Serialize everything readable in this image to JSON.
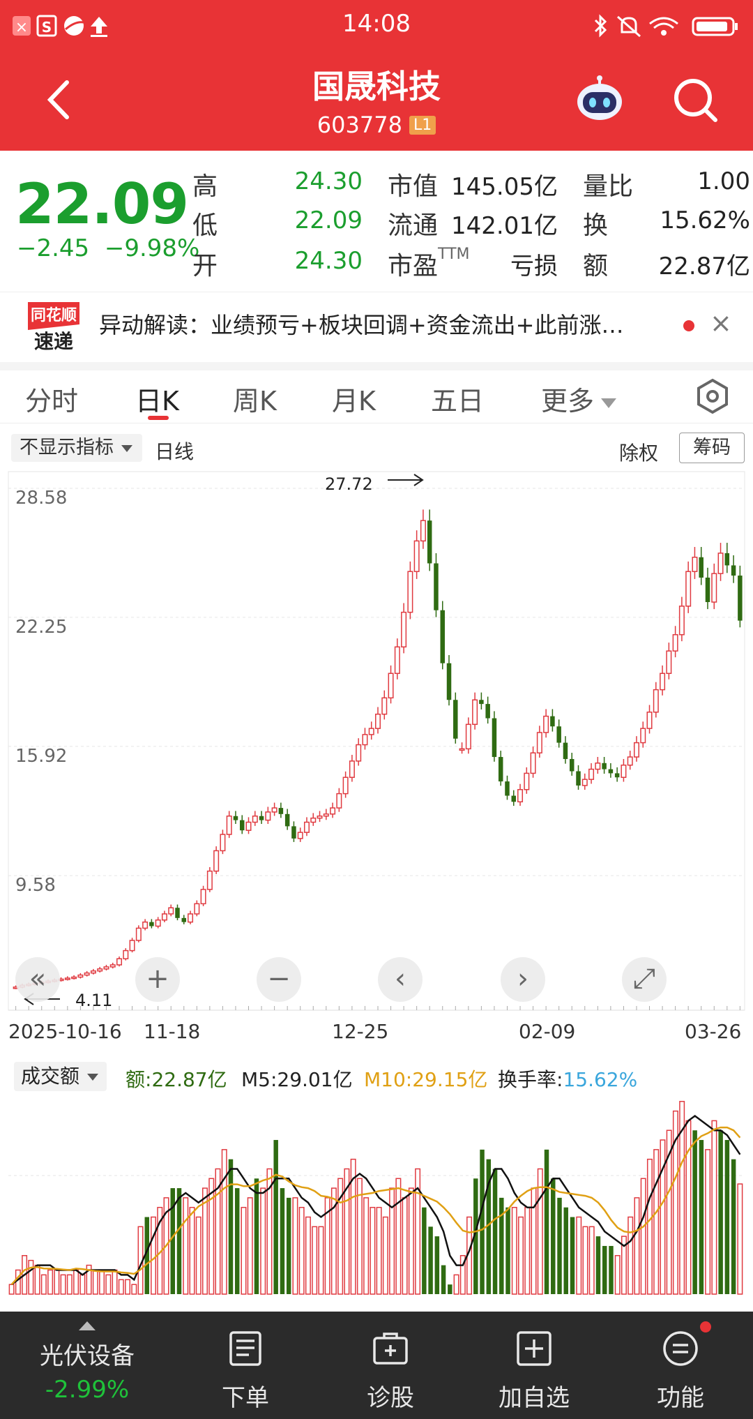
{
  "status_bar": {
    "time": "14:08"
  },
  "header": {
    "stock_name": "国晟科技",
    "stock_code": "603778",
    "level_badge": "L1"
  },
  "quote": {
    "price": "22.09",
    "change": "−2.45",
    "change_pct": "−9.98%",
    "fields": [
      {
        "label": "高",
        "value": "24.30"
      },
      {
        "label": "低",
        "value": "22.09"
      },
      {
        "label": "开",
        "value": "24.30"
      },
      {
        "label": "市值",
        "value": "145.05亿"
      },
      {
        "label": "流通",
        "value": "142.01亿"
      },
      {
        "label": "市盈",
        "label_suffix": "TTM",
        "value": "亏损"
      },
      {
        "label": "量比",
        "value": "1.00"
      },
      {
        "label": "换",
        "value": "15.62%"
      },
      {
        "label": "额",
        "value": "22.87亿"
      }
    ]
  },
  "news": {
    "logo_line1": "同花顺",
    "logo_line2": "速递",
    "text": "异动解读：业绩预亏+板块回调+资金流出+此前涨…",
    "close": "×"
  },
  "tabs": [
    "分时",
    "日K",
    "周K",
    "月K",
    "五日",
    "更多"
  ],
  "active_tab": 1,
  "toolbar": {
    "indicator": "不显示指标",
    "period": "日线",
    "adjust": "除权",
    "chips": "筹码"
  },
  "chart_data": [
    {
      "type": "candlestick",
      "title": "",
      "y_ticks": [
        "28.58",
        "22.25",
        "15.92",
        "9.58"
      ],
      "ylim": [
        3.25,
        28.58
      ],
      "max_label": "27.72",
      "min_label": "4.11",
      "x_labels": [
        "2025-10-16",
        "11-18",
        "12-25",
        "02-09",
        "03-26"
      ],
      "close": [
        4.11,
        4.2,
        4.25,
        4.3,
        4.35,
        4.4,
        4.45,
        4.5,
        4.55,
        4.6,
        4.7,
        4.8,
        4.9,
        5.0,
        5.1,
        5.2,
        5.5,
        5.9,
        6.4,
        7.0,
        7.3,
        7.1,
        7.4,
        7.7,
        8.0,
        7.5,
        7.3,
        7.7,
        8.2,
        8.9,
        9.8,
        10.8,
        11.6,
        12.5,
        12.3,
        11.8,
        12.2,
        12.5,
        12.3,
        12.7,
        12.9,
        12.6,
        12.0,
        11.4,
        11.7,
        12.2,
        12.4,
        12.5,
        12.6,
        12.9,
        13.6,
        14.4,
        15.2,
        16.0,
        16.5,
        16.8,
        17.5,
        18.3,
        19.5,
        20.8,
        22.5,
        24.5,
        26.0,
        27.0,
        24.9,
        22.6,
        20.0,
        18.2,
        16.3,
        15.8,
        17.0,
        18.2,
        18.0,
        17.3,
        15.4,
        14.2,
        13.5,
        13.2,
        13.8,
        14.6,
        15.6,
        16.6,
        17.4,
        16.9,
        16.1,
        15.3,
        14.7,
        14.0,
        14.3,
        14.8,
        15.1,
        14.8,
        14.6,
        14.4,
        15.0,
        15.4,
        16.1,
        16.8,
        17.6,
        18.7,
        19.5,
        20.6,
        21.4,
        22.8,
        24.5,
        25.2,
        24.2,
        23.0,
        24.4,
        25.4,
        24.8,
        24.3,
        22.09
      ],
      "daily_change_pct": [
        0,
        1,
        1,
        1,
        1,
        1,
        1,
        1,
        1,
        1,
        1,
        1,
        1,
        1,
        1,
        1,
        1,
        1,
        1,
        1,
        1,
        -1,
        1,
        1,
        1,
        -1,
        -1,
        1,
        1,
        1,
        1,
        1,
        1,
        1,
        -1,
        -1,
        1,
        1,
        -1,
        1,
        1,
        -1,
        -1,
        -1,
        1,
        1,
        1,
        1,
        1,
        1,
        1,
        1,
        1,
        1,
        1,
        1,
        1,
        1,
        1,
        1,
        1,
        1,
        1,
        1,
        -1,
        -1,
        -1,
        -1,
        -1,
        1,
        1,
        1,
        -1,
        -1,
        -1,
        -1,
        -1,
        -1,
        1,
        1,
        1,
        1,
        1,
        -1,
        -1,
        -1,
        -1,
        -1,
        1,
        1,
        1,
        -1,
        -1,
        -1,
        1,
        1,
        1,
        1,
        1,
        1,
        1,
        1,
        1,
        1,
        1,
        1,
        -1,
        -1,
        1,
        1,
        -1,
        -1,
        -1
      ]
    },
    {
      "type": "bar",
      "title": "成交额",
      "series": [
        {
          "name": "额",
          "current": "22.87亿"
        },
        {
          "name": "M5",
          "current": "29.01亿"
        },
        {
          "name": "M10",
          "current": "29.15亿"
        }
      ],
      "turnover_label": "换手率",
      "turnover_value": "15.62%",
      "ylim": [
        0,
        42
      ],
      "values": [
        2,
        5,
        8,
        7,
        6,
        4,
        5,
        5,
        4,
        4,
        5,
        4,
        6,
        5,
        5,
        4,
        5,
        3,
        3,
        2,
        14,
        16,
        16,
        18,
        20,
        22,
        22,
        20,
        18,
        16,
        22,
        24,
        26,
        30,
        28,
        22,
        18,
        20,
        24,
        22,
        26,
        32,
        22,
        20,
        20,
        18,
        16,
        14,
        14,
        20,
        22,
        24,
        26,
        28,
        24,
        20,
        18,
        18,
        16,
        22,
        24,
        20,
        22,
        26,
        18,
        14,
        12,
        6,
        2,
        4,
        8,
        16,
        24,
        30,
        28,
        26,
        20,
        18,
        18,
        16,
        18,
        22,
        26,
        30,
        24,
        20,
        18,
        16,
        16,
        14,
        14,
        12,
        10,
        10,
        8,
        12,
        16,
        20,
        24,
        28,
        30,
        32,
        34,
        38,
        40,
        36,
        34,
        32,
        30,
        36,
        34,
        32,
        28,
        22.87
      ],
      "m5": [
        2,
        3,
        4,
        5,
        6,
        6,
        6,
        5,
        5,
        5,
        5,
        4,
        5,
        5,
        5,
        5,
        5,
        4,
        4,
        3,
        6,
        9,
        12,
        15,
        17,
        18,
        20,
        21,
        20,
        19,
        20,
        21,
        22,
        24,
        26,
        26,
        24,
        22,
        21,
        21,
        22,
        24,
        24,
        24,
        22,
        20,
        19,
        17,
        16,
        17,
        18,
        20,
        22,
        24,
        25,
        24,
        22,
        20,
        19,
        18,
        19,
        20,
        21,
        22,
        20,
        18,
        16,
        13,
        8,
        6,
        6,
        9,
        13,
        18,
        23,
        26,
        26,
        24,
        21,
        19,
        18,
        18,
        20,
        22,
        24,
        24,
        22,
        20,
        18,
        17,
        16,
        15,
        13,
        12,
        11,
        10,
        11,
        13,
        16,
        20,
        23,
        26,
        29,
        32,
        34,
        36,
        37,
        36,
        35,
        34,
        34,
        33,
        31,
        29
      ]
    }
  ],
  "chart_controls": [
    "«",
    "+",
    "−",
    "‹",
    "›",
    "⤢"
  ],
  "bottom_bar": {
    "sector_name": "光伏设备",
    "sector_change": "-2.99%",
    "items": [
      "下单",
      "诊股",
      "加自选",
      "功能"
    ]
  }
}
